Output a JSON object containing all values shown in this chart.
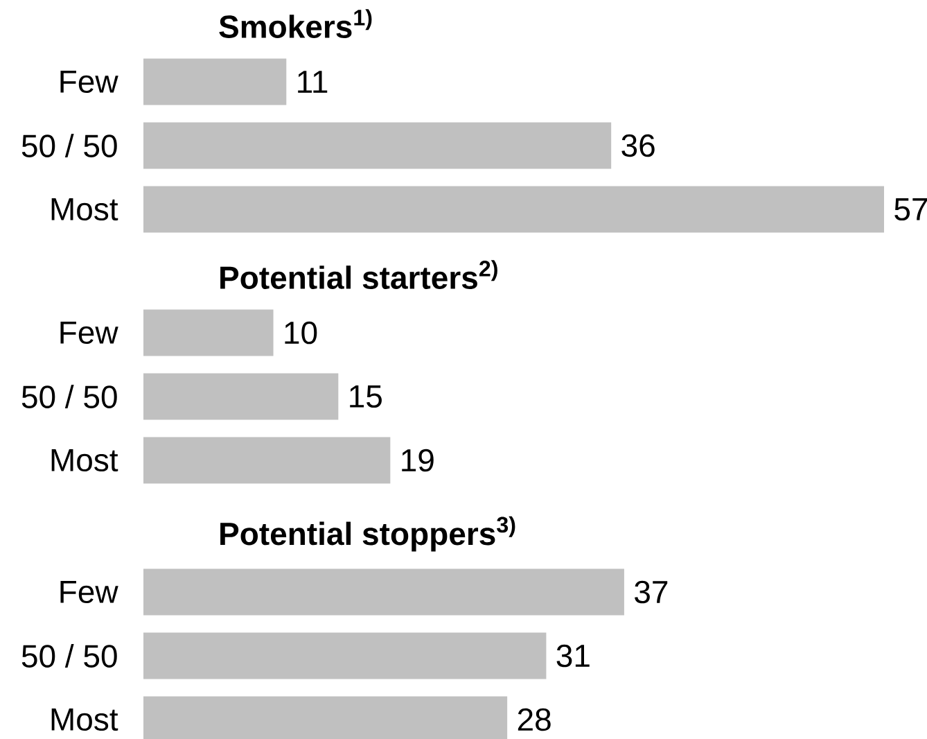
{
  "chart_data": [
    {
      "type": "bar",
      "orientation": "horizontal",
      "title": "Smokers$^{1)}$",
      "categories": [
        "Few",
        "50 / 50",
        "Most"
      ],
      "values": [
        11,
        36,
        57
      ],
      "color": "#c0c0c0",
      "tick_labels": "y",
      "data_labels": true
    },
    {
      "type": "bar",
      "orientation": "horizontal",
      "title": "Potential starters$^{2)}$",
      "categories": [
        "Few",
        "50 / 50",
        "Most"
      ],
      "values": [
        10,
        15,
        19
      ],
      "color": "#c0c0c0",
      "tick_labels": "y",
      "data_labels": true
    },
    {
      "type": "bar",
      "orientation": "horizontal",
      "title": "Potential stoppers$^{3)}$",
      "categories": [
        "Few",
        "50 / 50",
        "Most"
      ],
      "values": [
        37,
        31,
        28
      ],
      "color": "#c0c0c0",
      "tick_labels": "y",
      "data_labels": true
    }
  ]
}
